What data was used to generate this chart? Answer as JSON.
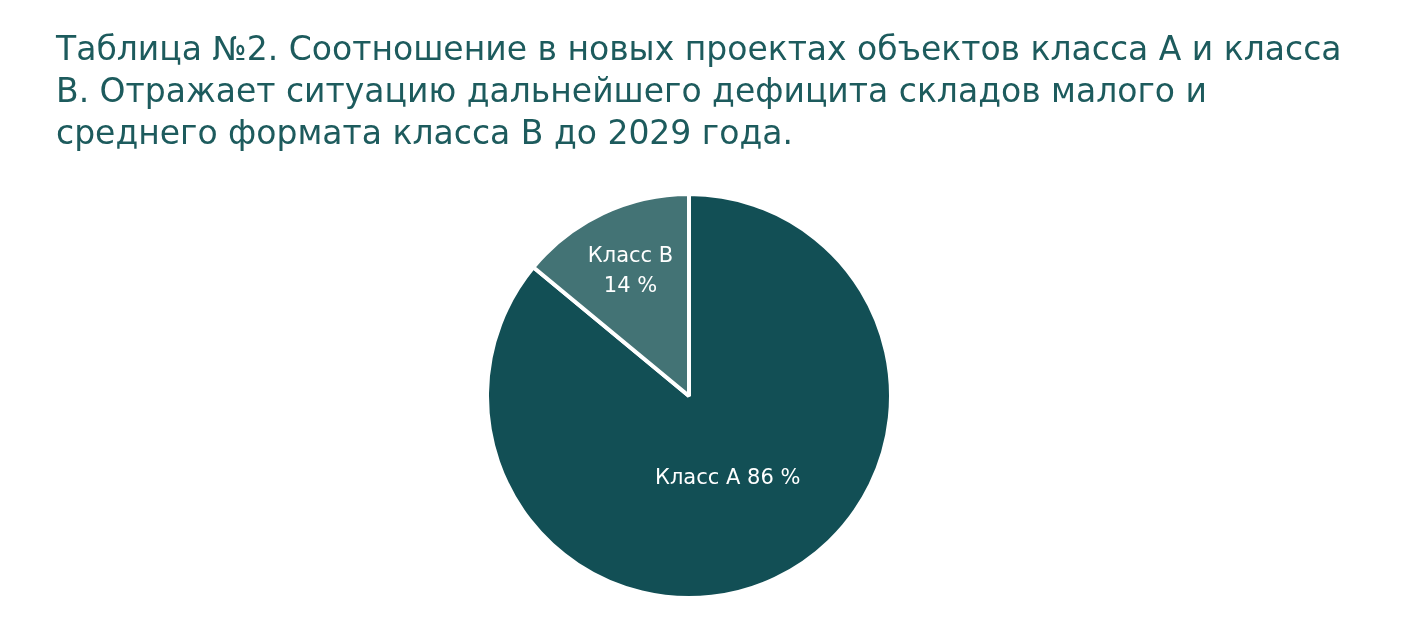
{
  "chart_data": {
    "type": "pie",
    "title": "Таблица №2. Соотношение в новых проектах объектов класса А и класса В. Отражает ситуацию дальнейшего дефицита складов малого и среднего формата класса В до 2029 года.",
    "categories": [
      "Класс А",
      "Класс В"
    ],
    "values": [
      86,
      14
    ],
    "colors": [
      "#124f55",
      "#437375"
    ],
    "value_labels": [
      "86 %",
      "14 %"
    ],
    "legend": false
  }
}
